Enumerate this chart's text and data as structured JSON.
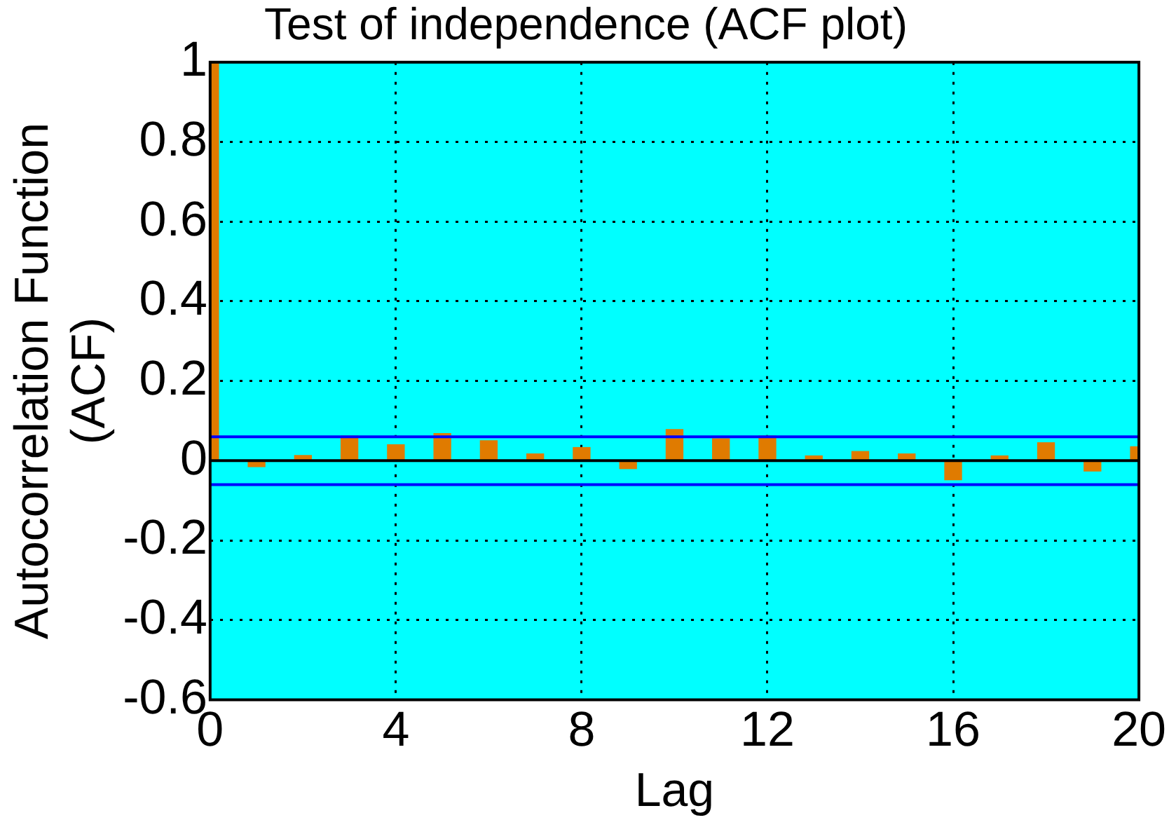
{
  "chart_data": {
    "type": "bar",
    "title": "Test of independence (ACF plot)",
    "xlabel": "Lag",
    "ylabel": "Autocorrelation Function\n(ACF)",
    "x": [
      0,
      1,
      2,
      3,
      4,
      5,
      6,
      7,
      8,
      9,
      10,
      11,
      12,
      13,
      14,
      15,
      16,
      17,
      18,
      19,
      20
    ],
    "values": [
      1,
      -0.015,
      0.013,
      0.062,
      0.04,
      0.068,
      0.05,
      0.017,
      0.033,
      -0.02,
      0.078,
      0.055,
      0.062,
      0.012,
      0.023,
      0.017,
      -0.048,
      0.012,
      0.045,
      -0.026,
      0.035
    ],
    "color": "#e07b00",
    "xlim": [
      0,
      20
    ],
    "xticks": [
      0,
      4,
      8,
      12,
      16,
      20
    ],
    "ylim": [
      -0.6,
      1
    ],
    "yticks": [
      -0.6,
      -0.4,
      -0.2,
      0,
      0.2,
      0.4,
      0.6,
      0.8,
      1
    ],
    "ref_lines": [
      {
        "axis": "y",
        "value": 0.06,
        "color": "#0000ff"
      },
      {
        "axis": "y",
        "value": -0.06,
        "color": "#0000ff"
      },
      {
        "axis": "y",
        "value": 0,
        "color": "#000000"
      }
    ],
    "grid": true,
    "legend": false
  }
}
